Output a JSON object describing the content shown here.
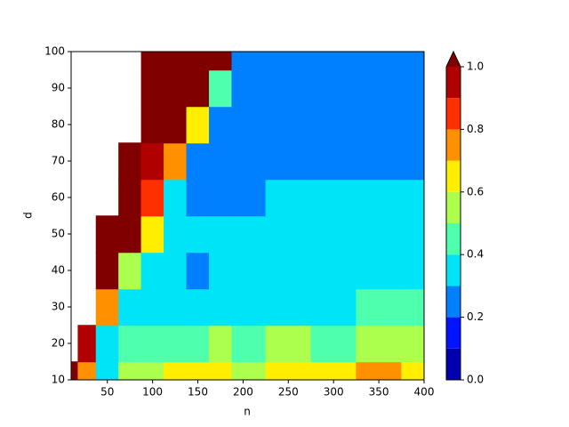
{
  "chart_data": {
    "type": "contour",
    "xlabel": "n",
    "ylabel": "d",
    "x": [
      10,
      25,
      50,
      75,
      100,
      125,
      150,
      175,
      200,
      250,
      300,
      350,
      400
    ],
    "y": [
      10,
      20,
      30,
      40,
      50,
      60,
      70,
      80,
      90,
      100
    ],
    "z": [
      [
        1.0,
        0.75,
        0.38,
        0.5,
        0.55,
        0.6,
        0.65,
        0.6,
        0.55,
        0.65,
        0.65,
        0.72,
        0.62
      ],
      [
        null,
        0.95,
        0.33,
        0.45,
        0.45,
        0.45,
        0.48,
        0.5,
        0.45,
        0.5,
        0.48,
        0.5,
        0.5
      ],
      [
        null,
        null,
        0.75,
        0.38,
        0.35,
        0.38,
        0.38,
        0.38,
        0.38,
        0.38,
        0.38,
        0.4,
        0.42
      ],
      [
        null,
        null,
        1.05,
        0.5,
        0.35,
        0.3,
        0.25,
        0.38,
        0.35,
        0.38,
        0.38,
        0.38,
        0.38
      ],
      [
        null,
        null,
        1.05,
        1.05,
        0.6,
        0.38,
        0.35,
        0.3,
        0.35,
        0.35,
        0.3,
        0.38,
        0.3
      ],
      [
        null,
        null,
        null,
        1.05,
        0.8,
        0.38,
        0.25,
        0.25,
        0.25,
        0.3,
        0.35,
        0.35,
        0.38
      ],
      [
        null,
        null,
        null,
        1.05,
        0.9,
        0.7,
        0.25,
        0.25,
        0.25,
        0.25,
        0.25,
        0.25,
        0.25
      ],
      [
        null,
        null,
        null,
        null,
        1.05,
        1.05,
        0.6,
        0.25,
        0.25,
        0.25,
        0.25,
        0.25,
        0.25
      ],
      [
        null,
        null,
        null,
        null,
        1.05,
        1.05,
        1.05,
        0.4,
        0.25,
        0.25,
        0.25,
        0.25,
        0.25
      ],
      [
        null,
        null,
        null,
        null,
        1.05,
        1.05,
        1.05,
        1.05,
        0.25,
        0.25,
        0.25,
        0.25,
        0.25
      ]
    ],
    "levels": [
      0,
      0.1,
      0.2,
      0.3,
      0.4,
      0.5,
      0.6,
      0.7,
      0.8,
      0.9,
      1.0
    ],
    "colors": [
      "#0000b0",
      "#0014ff",
      "#0080ff",
      "#00e4f8",
      "#4effad",
      "#adff4e",
      "#ffee00",
      "#ff9000",
      "#ff3000",
      "#b00000"
    ],
    "over_color": "#800000",
    "xlim": [
      10,
      400
    ],
    "xticks": [
      50,
      100,
      150,
      200,
      250,
      300,
      350,
      400
    ],
    "ylim": [
      10,
      100
    ],
    "yticks": [
      10,
      20,
      30,
      40,
      50,
      60,
      70,
      80,
      90,
      100
    ],
    "cbar_ticks": [
      {
        "value": 0,
        "label": "0.0"
      },
      0.2,
      0.4,
      0.6,
      0.8,
      {
        "value": 1.0,
        "label": "1.0"
      }
    ]
  }
}
